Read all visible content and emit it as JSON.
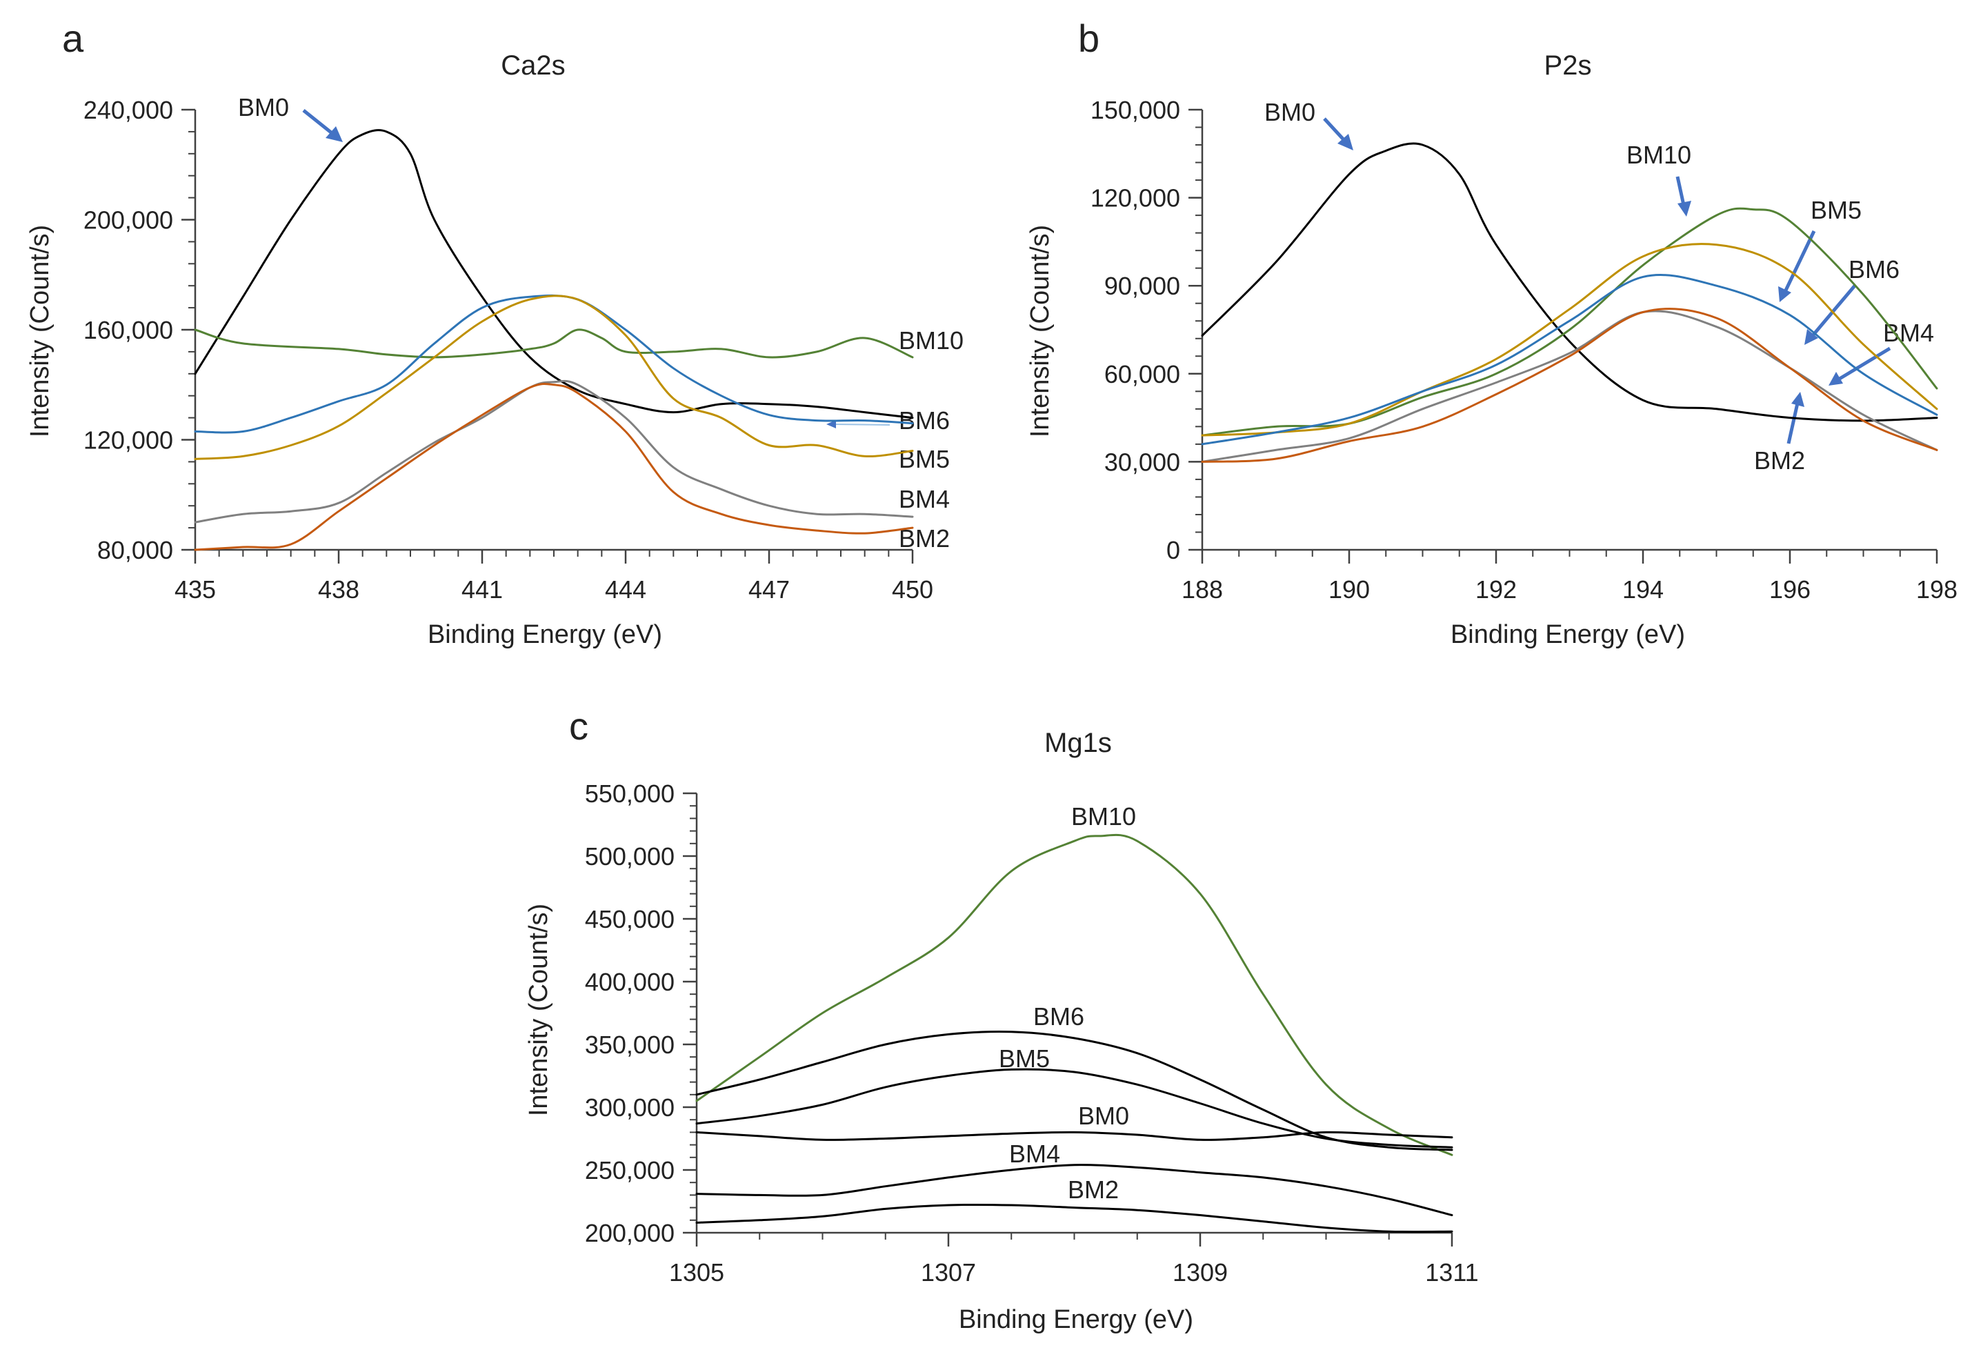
{
  "chart_data": [
    {
      "type": "line",
      "panel_label": "a",
      "title": "Ca2s",
      "xlabel": "Binding Energy (eV)",
      "ylabel": "Intensity (Count/s)",
      "xlim": [
        435,
        450
      ],
      "ylim": [
        80000,
        240000
      ],
      "x_ticks": [
        435,
        438,
        441,
        444,
        447,
        450
      ],
      "y_ticks": [
        80000,
        120000,
        160000,
        200000,
        240000
      ],
      "x_tick_labels": [
        "435",
        "438",
        "441",
        "444",
        "447",
        "450"
      ],
      "y_tick_labels": [
        "80,000",
        "120,000",
        "160,000",
        "200,000",
        "240,000"
      ],
      "series": [
        {
          "name": "BM0",
          "color": "#000000",
          "label": "BM0",
          "x": [
            435,
            436,
            437,
            438,
            438.5,
            439,
            439.5,
            440,
            441,
            442,
            443,
            444,
            445,
            446,
            447,
            448,
            449,
            450
          ],
          "y": [
            144000,
            172000,
            200000,
            224000,
            231000,
            232000,
            224000,
            200000,
            172000,
            150000,
            138000,
            133000,
            130000,
            133000,
            133000,
            132000,
            130000,
            128000
          ]
        },
        {
          "name": "BM10",
          "color": "#548235",
          "label": "BM10",
          "x": [
            435,
            436,
            438,
            439,
            440,
            441,
            442,
            442.5,
            443,
            443.5,
            444,
            445,
            446,
            447,
            448,
            449,
            450
          ],
          "y": [
            160000,
            155000,
            153000,
            151000,
            150000,
            151000,
            153000,
            155000,
            160000,
            157000,
            152000,
            152000,
            153000,
            150000,
            152000,
            157000,
            150000
          ]
        },
        {
          "name": "BM6",
          "color": "#2e75b6",
          "label": "BM6",
          "x": [
            435,
            436,
            437,
            438,
            439,
            440,
            441,
            442,
            443,
            444,
            445,
            446,
            447,
            448,
            449,
            450
          ],
          "y": [
            123000,
            123000,
            128000,
            134000,
            140000,
            155000,
            168000,
            172000,
            171000,
            160000,
            146000,
            136000,
            129000,
            127000,
            127000,
            126000
          ]
        },
        {
          "name": "BM5",
          "color": "#bf9000",
          "label": "BM5",
          "x": [
            435,
            436,
            437,
            438,
            439,
            440,
            441,
            442,
            443,
            444,
            445,
            446,
            447,
            448,
            449,
            450
          ],
          "y": [
            113000,
            114000,
            118000,
            125000,
            137000,
            150000,
            163000,
            171000,
            171000,
            158000,
            135000,
            128000,
            118000,
            118000,
            114000,
            116000
          ]
        },
        {
          "name": "BM4",
          "color": "#808080",
          "label": "BM4",
          "x": [
            435,
            436,
            437,
            438,
            439,
            440,
            441,
            442,
            442.5,
            443,
            444,
            445,
            446,
            447,
            448,
            449,
            450
          ],
          "y": [
            90000,
            93000,
            94000,
            97000,
            108000,
            119000,
            128000,
            139000,
            141000,
            140000,
            128000,
            110000,
            102000,
            96000,
            93000,
            93000,
            92000
          ]
        },
        {
          "name": "BM2",
          "color": "#c55a11",
          "label": "BM2",
          "x": [
            435,
            436,
            437,
            438,
            439,
            440,
            441,
            442,
            442.5,
            443,
            444,
            445,
            446,
            447,
            448,
            449,
            450
          ],
          "y": [
            80000,
            81000,
            82000,
            94000,
            106000,
            118000,
            129000,
            139000,
            140000,
            137000,
            123000,
            101000,
            93000,
            89000,
            87000,
            86000,
            88000
          ]
        }
      ],
      "annotations": [
        {
          "text": "BM0",
          "arrow_to": {
            "x": 438.2,
            "y": 227000
          }
        }
      ]
    },
    {
      "type": "line",
      "panel_label": "b",
      "title": "P2s",
      "xlabel": "Binding Energy (eV)",
      "ylabel": "Intensity (Count/s)",
      "xlim": [
        188,
        198
      ],
      "ylim": [
        0,
        150000
      ],
      "x_ticks": [
        188,
        190,
        192,
        194,
        196,
        198
      ],
      "y_ticks": [
        0,
        30000,
        60000,
        90000,
        120000,
        150000
      ],
      "x_tick_labels": [
        "188",
        "190",
        "192",
        "194",
        "196",
        "198"
      ],
      "y_tick_labels": [
        "0",
        "30,000",
        "60,000",
        "90,000",
        "120,000",
        "150,000"
      ],
      "series": [
        {
          "name": "BM0",
          "color": "#000000",
          "x": [
            188,
            189,
            190,
            190.5,
            191,
            191.5,
            192,
            193,
            194,
            195,
            196,
            197,
            198
          ],
          "y": [
            73000,
            98000,
            128000,
            136000,
            138000,
            128000,
            104000,
            71000,
            51000,
            48000,
            45000,
            44000,
            45000
          ]
        },
        {
          "name": "BM10",
          "color": "#548235",
          "x": [
            188,
            189,
            190,
            191,
            192,
            193,
            194,
            195,
            195.5,
            196,
            197,
            198
          ],
          "y": [
            39000,
            42000,
            43000,
            52000,
            60000,
            75000,
            97000,
            114000,
            116000,
            112000,
            87000,
            55000
          ]
        },
        {
          "name": "BM5",
          "color": "#bf9000",
          "x": [
            188,
            189,
            190,
            191,
            192,
            193,
            194,
            195,
            196,
            197,
            198
          ],
          "y": [
            39000,
            40000,
            43000,
            54000,
            65000,
            82000,
            100000,
            104000,
            95000,
            70000,
            48000
          ]
        },
        {
          "name": "BM6",
          "color": "#2e75b6",
          "x": [
            188,
            189,
            190,
            191,
            192,
            193,
            194,
            195,
            196,
            197,
            198
          ],
          "y": [
            36000,
            40000,
            45000,
            54000,
            63000,
            78000,
            93000,
            90000,
            80000,
            60000,
            46000
          ]
        },
        {
          "name": "BM4",
          "color": "#808080",
          "x": [
            188,
            189,
            190,
            191,
            192,
            193,
            194,
            195,
            196,
            197,
            198
          ],
          "y": [
            30000,
            34000,
            38000,
            48000,
            57000,
            67000,
            81000,
            76000,
            62000,
            46000,
            34000
          ]
        },
        {
          "name": "BM2",
          "color": "#c55a11",
          "x": [
            188,
            189,
            190,
            191,
            192,
            193,
            194,
            195,
            196,
            197,
            198
          ],
          "y": [
            30000,
            31000,
            37000,
            42000,
            53000,
            66000,
            81000,
            79000,
            62000,
            44000,
            34000
          ]
        }
      ],
      "labels": [
        {
          "text": "BM0",
          "arrow_to": {
            "x": 190.1,
            "y": 133000
          }
        },
        {
          "text": "BM10",
          "arrow_to": {
            "x": 195.2,
            "y": 113000
          }
        },
        {
          "text": "BM5",
          "arrow_to": {
            "x": 195.8,
            "y": 85000
          }
        },
        {
          "text": "BM6",
          "arrow_to": {
            "x": 196.1,
            "y": 70000
          }
        },
        {
          "text": "BM4",
          "arrow_to": {
            "x": 196.4,
            "y": 55000
          }
        },
        {
          "text": "BM2",
          "arrow_to": {
            "x": 195.6,
            "y": 53000
          }
        }
      ]
    },
    {
      "type": "line",
      "panel_label": "c",
      "title": "Mg1s",
      "xlabel": "Binding Energy (eV)",
      "ylabel": "Intensity (Count/s)",
      "xlim": [
        1305,
        1311
      ],
      "ylim": [
        200000,
        550000
      ],
      "x_ticks": [
        1305,
        1307,
        1309,
        1311
      ],
      "y_ticks": [
        200000,
        250000,
        300000,
        350000,
        400000,
        450000,
        500000,
        550000
      ],
      "x_tick_labels": [
        "1305",
        "1307",
        "1309",
        "1311"
      ],
      "y_tick_labels": [
        "200,000",
        "250,000",
        "300,000",
        "350,000",
        "400,000",
        "450,000",
        "500,000",
        "550,000"
      ],
      "series": [
        {
          "name": "BM10",
          "color": "#548235",
          "label": "BM10",
          "x": [
            1305,
            1305.5,
            1306,
            1306.5,
            1307,
            1307.5,
            1308,
            1308.2,
            1308.5,
            1309,
            1309.5,
            1310,
            1310.5,
            1311
          ],
          "y": [
            305000,
            340000,
            375000,
            403000,
            435000,
            488000,
            512000,
            516000,
            512000,
            470000,
            390000,
            318000,
            283000,
            262000
          ]
        },
        {
          "name": "BM6",
          "color": "#000000",
          "label": "BM6",
          "x": [
            1305,
            1305.5,
            1306,
            1306.5,
            1307,
            1307.5,
            1308,
            1308.5,
            1309,
            1309.5,
            1310,
            1310.5,
            1311
          ],
          "y": [
            310000,
            322000,
            336000,
            350000,
            358000,
            360000,
            355000,
            343000,
            322000,
            298000,
            276000,
            268000,
            266000
          ]
        },
        {
          "name": "BM5",
          "color": "#000000",
          "label": "BM5",
          "x": [
            1305,
            1305.5,
            1306,
            1306.5,
            1307,
            1307.5,
            1308,
            1308.5,
            1309,
            1309.5,
            1310,
            1310.5,
            1311
          ],
          "y": [
            287000,
            293000,
            302000,
            316000,
            325000,
            330000,
            328000,
            318000,
            303000,
            287000,
            275000,
            270000,
            268000
          ]
        },
        {
          "name": "BM0",
          "color": "#000000",
          "label": "BM0",
          "x": [
            1305,
            1305.5,
            1306,
            1306.5,
            1307,
            1307.5,
            1308,
            1308.5,
            1309,
            1309.5,
            1310,
            1310.5,
            1311
          ],
          "y": [
            280000,
            277000,
            274000,
            275000,
            277000,
            279000,
            280000,
            278000,
            274000,
            276000,
            280000,
            278000,
            276000
          ]
        },
        {
          "name": "BM4",
          "color": "#000000",
          "label": "BM4",
          "x": [
            1305,
            1305.5,
            1306,
            1306.5,
            1307,
            1307.5,
            1308,
            1308.5,
            1309,
            1309.5,
            1310,
            1310.5,
            1311
          ],
          "y": [
            231000,
            230000,
            230000,
            237000,
            244000,
            250000,
            254000,
            252000,
            248000,
            244000,
            237000,
            227000,
            214000
          ]
        },
        {
          "name": "BM2",
          "color": "#000000",
          "label": "BM2",
          "x": [
            1305,
            1305.5,
            1306,
            1306.5,
            1307,
            1307.5,
            1308,
            1308.5,
            1309,
            1309.5,
            1310,
            1310.5,
            1311
          ],
          "y": [
            208000,
            210000,
            213000,
            219000,
            222000,
            222000,
            220000,
            218000,
            214000,
            209000,
            204000,
            201000,
            201000
          ]
        }
      ]
    }
  ]
}
